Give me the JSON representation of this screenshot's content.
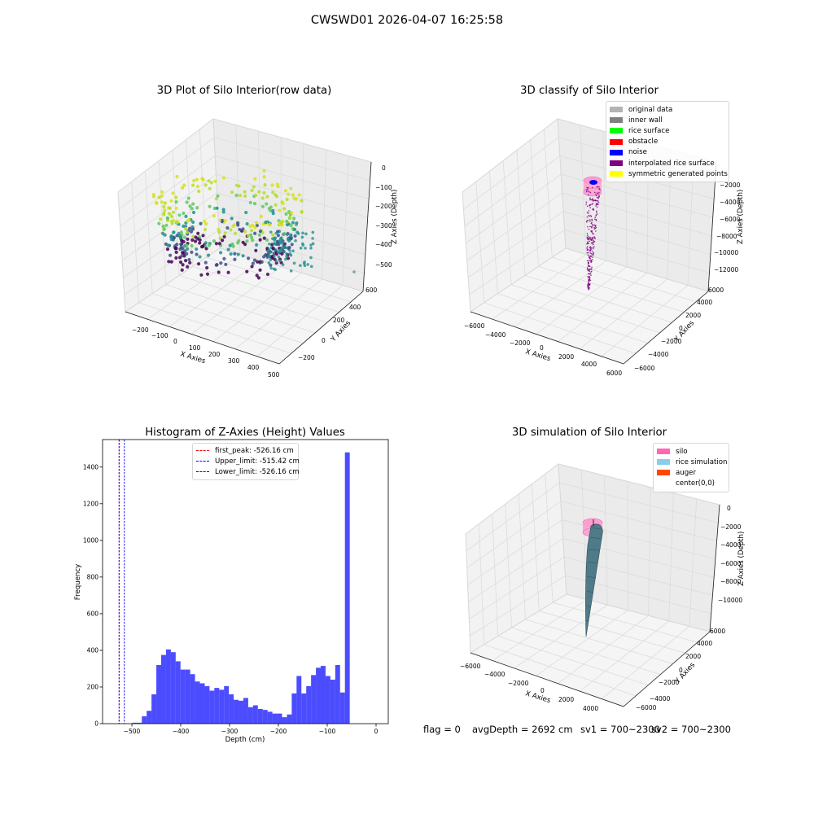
{
  "suptitle": "CWSWD01 2026-04-07 16:25:58",
  "footer": {
    "flag": "flag = 0",
    "avg_depth": "avgDepth = 2692 cm",
    "sv1": "sv1 = 700~2300",
    "sv2": "sv2 = 700~2300"
  },
  "panels": {
    "raw": {
      "title": "3D Plot of Silo Interior(row data)",
      "xlabel": "X Axies",
      "ylabel": "Y Axies",
      "zlabel": "Z Axies (Depth)",
      "xticks": [
        "−200",
        "−100",
        "0",
        "100",
        "200",
        "300",
        "400",
        "500"
      ],
      "yticks": [
        "−200",
        "0",
        "200",
        "400",
        "600"
      ],
      "zticks": [
        "0",
        "−100",
        "−200",
        "−300",
        "−400",
        "−500"
      ]
    },
    "classify": {
      "title": "3D classify of Silo Interior",
      "xlabel": "X Axies",
      "ylabel": "Y Axies",
      "zlabel": "Z Axies (Depth)",
      "xticks": [
        "−6000",
        "−4000",
        "−2000",
        "0",
        "2000",
        "4000",
        "6000"
      ],
      "yticks": [
        "−6000",
        "−4000",
        "−2000",
        "0",
        "2000",
        "4000",
        "6000"
      ],
      "zticks": [
        "−2000",
        "−4000",
        "−6000",
        "−8000",
        "−10000",
        "−12000"
      ],
      "legend": [
        {
          "label": "original data",
          "color": "#b3b3b3"
        },
        {
          "label": "inner wall",
          "color": "#808080"
        },
        {
          "label": "rice surface",
          "color": "#00ff00"
        },
        {
          "label": "obstacle",
          "color": "#ff0000"
        },
        {
          "label": "noise",
          "color": "#0000ff"
        },
        {
          "label": "interpolated rice surface",
          "color": "#800080"
        },
        {
          "label": "symmetric generated points",
          "color": "#ffff00"
        }
      ]
    },
    "simulation": {
      "title": "3D simulation of Silo Interior",
      "xlabel": "X Axies",
      "ylabel": "Y Axies",
      "zlabel": "Z Axies (Depth)",
      "xticks": [
        "−6000",
        "−4000",
        "−2000",
        "0",
        "2000",
        "4000"
      ],
      "yticks": [
        "−6000",
        "−4000",
        "−2000",
        "0",
        "2000",
        "4000",
        "6000"
      ],
      "zticks": [
        "0",
        "−2000",
        "−4000",
        "−6000",
        "−8000",
        "−10000"
      ],
      "legend": [
        {
          "label": "silo",
          "color": "#ff69b4"
        },
        {
          "label": "rice simulation",
          "color": "#87ceeb"
        },
        {
          "label": "auger",
          "color": "#ff4500"
        },
        {
          "label": "center(0,0)",
          "color": "#ffffff"
        }
      ]
    }
  },
  "chart_data": {
    "type": "bar",
    "title": "Histogram of Z-Axies (Height) Values",
    "xlabel": "Depth (cm)",
    "ylabel": "Frequency",
    "xlim": [
      -560,
      25
    ],
    "ylim": [
      0,
      1550
    ],
    "xticks": [
      -500,
      -400,
      -300,
      -200,
      -100,
      0
    ],
    "xtick_labels": [
      "−500",
      "−400",
      "−300",
      "−200",
      "−100",
      "0"
    ],
    "yticks": [
      0,
      200,
      400,
      600,
      800,
      1000,
      1200,
      1400
    ],
    "bar_color": "#0000ff",
    "bin_start": -499.4,
    "bin_width": 9.9,
    "values": [
      5,
      5,
      40,
      70,
      160,
      320,
      375,
      405,
      390,
      340,
      295,
      295,
      270,
      230,
      220,
      205,
      180,
      195,
      185,
      205,
      160,
      130,
      125,
      140,
      90,
      100,
      80,
      75,
      65,
      55,
      55,
      35,
      50,
      165,
      260,
      165,
      205,
      265,
      305,
      315,
      260,
      240,
      320,
      170,
      1480
    ],
    "reference_lines": [
      {
        "label": "first_peak: -526.16 cm",
        "x": -526.16,
        "color": "#ff0000"
      },
      {
        "label": "Upper_limit: -515.42 cm",
        "x": -515.42,
        "color": "#0000ff"
      },
      {
        "label": "Lower_limit: -526.16 cm",
        "x": -526.16,
        "color": "#0000ff"
      }
    ],
    "legend_position": "top"
  }
}
